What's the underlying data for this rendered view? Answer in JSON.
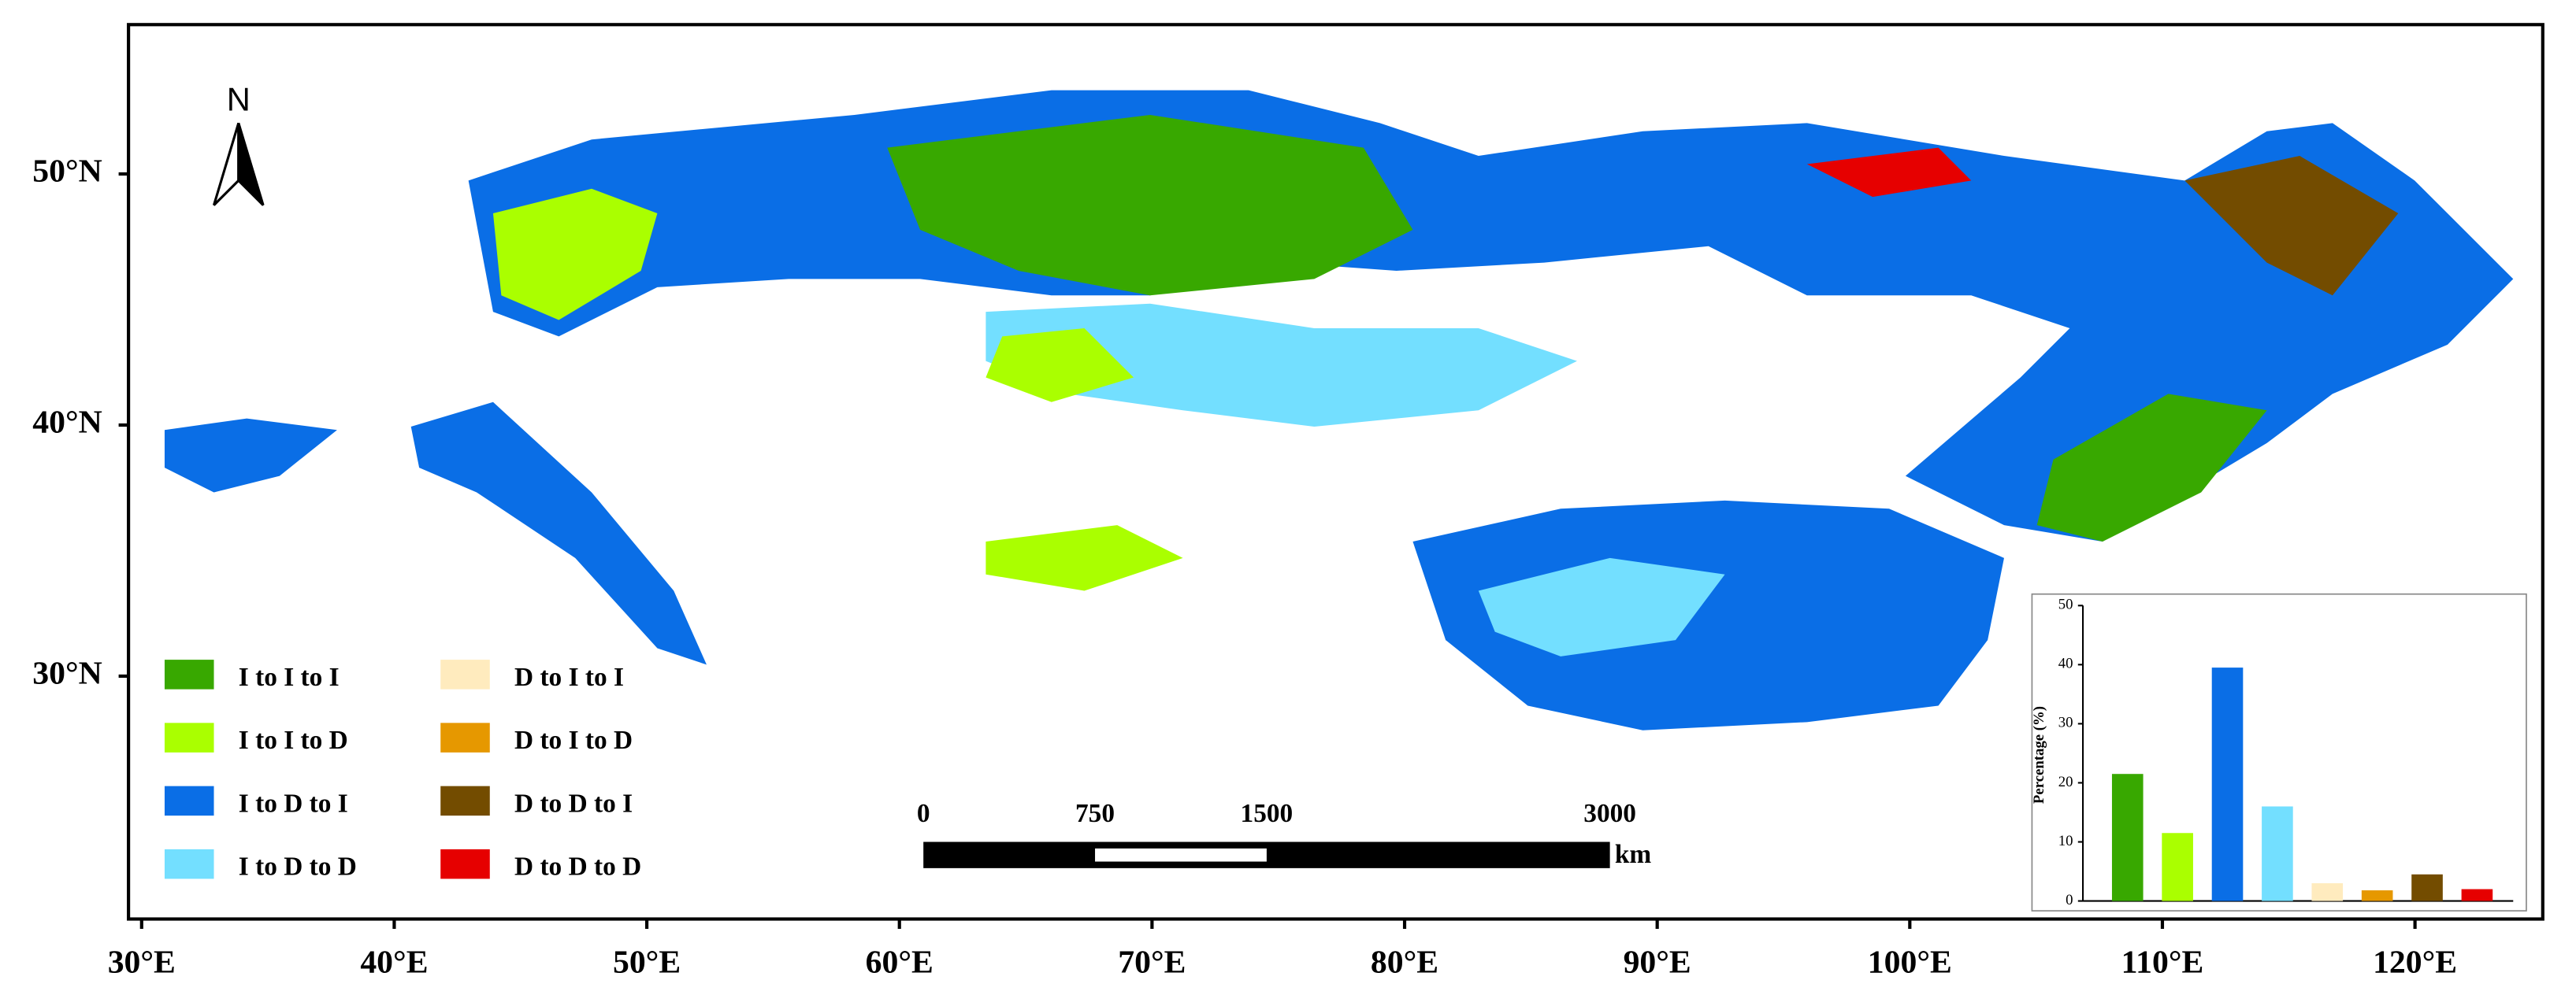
{
  "map": {
    "north": "N",
    "lon_ticks": [
      {
        "value": 30,
        "label": "30°E"
      },
      {
        "value": 40,
        "label": "40°E"
      },
      {
        "value": 50,
        "label": "50°E"
      },
      {
        "value": 60,
        "label": "60°E"
      },
      {
        "value": 70,
        "label": "70°E"
      },
      {
        "value": 80,
        "label": "80°E"
      },
      {
        "value": 90,
        "label": "90°E"
      },
      {
        "value": 100,
        "label": "100°E"
      },
      {
        "value": 110,
        "label": "110°E"
      },
      {
        "value": 120,
        "label": "120°E"
      }
    ],
    "lat_ticks": [
      {
        "value": 50,
        "label": "50°N"
      },
      {
        "value": 40,
        "label": "40°N"
      },
      {
        "value": 30,
        "label": "30°N"
      }
    ],
    "legend": [
      {
        "label": "I to I to I",
        "color": "#38a800"
      },
      {
        "label": "I to I to D",
        "color": "#aaff00"
      },
      {
        "label": "I  to D to I",
        "color": "#0a6ee6"
      },
      {
        "label": "I to D to D",
        "color": "#73dfff"
      },
      {
        "label": "D to I to I",
        "color": "#ffebbe"
      },
      {
        "label": "D to I  to D",
        "color": "#e69800"
      },
      {
        "label": "D to D to I",
        "color": "#734c00"
      },
      {
        "label": "D to D to D",
        "color": "#e60000"
      }
    ],
    "scale_bar": {
      "ticks": [
        0,
        750,
        1500,
        3000
      ],
      "unit": "km"
    }
  },
  "chart_data": {
    "type": "bar",
    "ylabel": "Percentage (%)",
    "categories": [
      null,
      null,
      null,
      null,
      null,
      null,
      null,
      null
    ],
    "values": [
      21.5,
      11.5,
      39.5,
      16,
      3,
      1.8,
      4.5,
      2
    ],
    "colors": [
      "#38a800",
      "#aaff00",
      "#0a6ee6",
      "#73dfff",
      "#ffebbe",
      "#e69800",
      "#734c00",
      "#e60000"
    ],
    "ylim": [
      0,
      50
    ],
    "yticks": [
      0,
      10,
      20,
      30,
      40,
      50
    ]
  }
}
